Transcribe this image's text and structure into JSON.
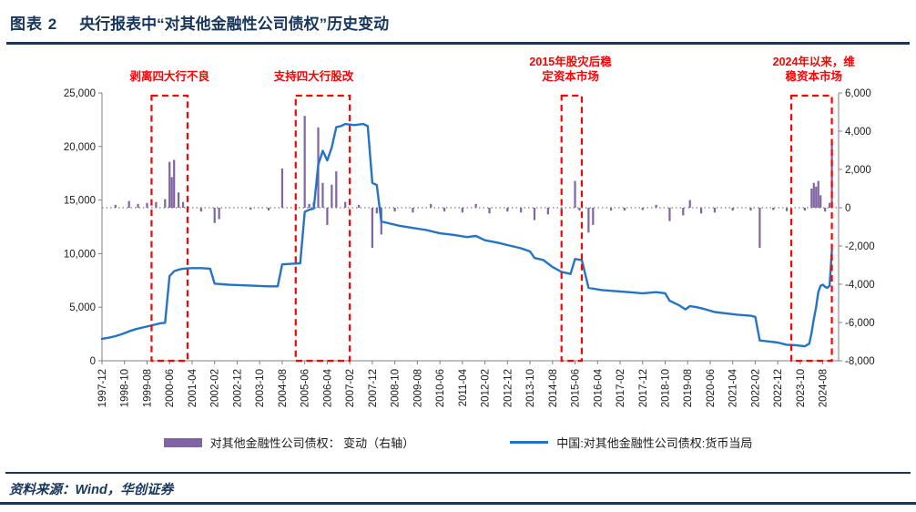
{
  "header": {
    "figure_label": "图表 2",
    "title": "央行报表中“对其他金融性公司债权”历史变动"
  },
  "legend": {
    "bar_label": "对其他金融性公司债权： 变动（右轴）",
    "line_label": "中国:对其他金融性公司债权:货币当局"
  },
  "footer": {
    "source": "资料来源：Wind，华创证券"
  },
  "colors": {
    "navy": "#17365D",
    "line_blue": "#2473C5",
    "bar_purple": "#8064A2",
    "annotation_red": "#FF0000",
    "axis_line": "#7f7f7f",
    "tick_text": "#1a1a1a"
  },
  "chart_data": {
    "type": "line+bar",
    "x_start": "1997-12",
    "x_end": "2024-12",
    "x_tick_labels": [
      "1997-12",
      "1998-10",
      "1999-08",
      "2000-06",
      "2001-04",
      "2002-02",
      "2002-12",
      "2003-10",
      "2004-08",
      "2005-06",
      "2006-04",
      "2007-02",
      "2007-12",
      "2008-10",
      "2009-08",
      "2010-06",
      "2011-04",
      "2012-02",
      "2012-12",
      "2013-10",
      "2014-08",
      "2015-06",
      "2016-04",
      "2017-02",
      "2017-12",
      "2018-10",
      "2019-08",
      "2020-06",
      "2021-04",
      "2022-02",
      "2022-12",
      "2023-10",
      "2024-08"
    ],
    "x_tick_step_months": 10,
    "left_axis": {
      "min": 0,
      "max": 25000,
      "step": 5000,
      "ticks": [
        "0",
        "5,000",
        "10,000",
        "15,000",
        "20,000",
        "25,000"
      ]
    },
    "right_axis": {
      "min": -8000,
      "max": 6000,
      "step": 2000,
      "ticks": [
        "-8,000",
        "-6,000",
        "-4,000",
        "-2,000",
        "0",
        "2,000",
        "4,000",
        "6,000"
      ]
    },
    "grid": "off",
    "legend_position": "bottom",
    "series": [
      {
        "name": "中国:对其他金融性公司债权:货币当局",
        "type": "line",
        "axis": "left",
        "color": "#2473C5",
        "points": [
          [
            "1997-12",
            2050
          ],
          [
            "1998-03",
            2150
          ],
          [
            "1998-06",
            2300
          ],
          [
            "1998-09",
            2500
          ],
          [
            "1998-12",
            2750
          ],
          [
            "1999-03",
            2950
          ],
          [
            "1999-06",
            3100
          ],
          [
            "1999-09",
            3250
          ],
          [
            "1999-12",
            3400
          ],
          [
            "2000-02",
            3500
          ],
          [
            "2000-04",
            3550
          ],
          [
            "2000-06",
            7900
          ],
          [
            "2000-08",
            8350
          ],
          [
            "2000-10",
            8500
          ],
          [
            "2000-12",
            8600
          ],
          [
            "2001-04",
            8650
          ],
          [
            "2001-08",
            8650
          ],
          [
            "2001-12",
            8600
          ],
          [
            "2002-02",
            7200
          ],
          [
            "2002-08",
            7100
          ],
          [
            "2003-02",
            7050
          ],
          [
            "2003-08",
            7000
          ],
          [
            "2004-02",
            6950
          ],
          [
            "2004-06",
            6950
          ],
          [
            "2004-08",
            9000
          ],
          [
            "2004-12",
            9050
          ],
          [
            "2005-04",
            9100
          ],
          [
            "2005-06",
            13900
          ],
          [
            "2005-08",
            14100
          ],
          [
            "2005-10",
            14200
          ],
          [
            "2005-12",
            18300
          ],
          [
            "2006-02",
            19600
          ],
          [
            "2006-04",
            18700
          ],
          [
            "2006-06",
            19900
          ],
          [
            "2006-08",
            21800
          ],
          [
            "2006-10",
            21900
          ],
          [
            "2006-12",
            22100
          ],
          [
            "2007-04",
            22000
          ],
          [
            "2007-08",
            22100
          ],
          [
            "2007-10",
            21900
          ],
          [
            "2007-12",
            16600
          ],
          [
            "2008-02",
            16400
          ],
          [
            "2008-04",
            13000
          ],
          [
            "2008-08",
            12800
          ],
          [
            "2008-12",
            12600
          ],
          [
            "2009-06",
            12400
          ],
          [
            "2009-12",
            12200
          ],
          [
            "2010-06",
            11900
          ],
          [
            "2010-12",
            11750
          ],
          [
            "2011-06",
            11550
          ],
          [
            "2011-10",
            11650
          ],
          [
            "2012-02",
            11250
          ],
          [
            "2012-08",
            11000
          ],
          [
            "2012-12",
            10800
          ],
          [
            "2013-06",
            10500
          ],
          [
            "2013-10",
            10200
          ],
          [
            "2013-12",
            9600
          ],
          [
            "2014-04",
            9400
          ],
          [
            "2014-08",
            8750
          ],
          [
            "2014-12",
            8300
          ],
          [
            "2015-04",
            8100
          ],
          [
            "2015-06",
            9500
          ],
          [
            "2015-09",
            9400
          ],
          [
            "2015-12",
            6800
          ],
          [
            "2016-06",
            6600
          ],
          [
            "2016-12",
            6500
          ],
          [
            "2017-06",
            6400
          ],
          [
            "2017-12",
            6300
          ],
          [
            "2018-06",
            6400
          ],
          [
            "2018-10",
            6300
          ],
          [
            "2018-12",
            5600
          ],
          [
            "2019-04",
            5200
          ],
          [
            "2019-07",
            4800
          ],
          [
            "2019-09",
            5100
          ],
          [
            "2019-12",
            5000
          ],
          [
            "2020-04",
            4800
          ],
          [
            "2020-08",
            4550
          ],
          [
            "2020-12",
            4450
          ],
          [
            "2021-06",
            4300
          ],
          [
            "2021-12",
            4200
          ],
          [
            "2022-02",
            4100
          ],
          [
            "2022-04",
            1900
          ],
          [
            "2022-08",
            1800
          ],
          [
            "2022-12",
            1700
          ],
          [
            "2023-04",
            1500
          ],
          [
            "2023-08",
            1450
          ],
          [
            "2023-12",
            1350
          ],
          [
            "2024-02",
            1600
          ],
          [
            "2024-03",
            2600
          ],
          [
            "2024-04",
            3900
          ],
          [
            "2024-05",
            5000
          ],
          [
            "2024-06",
            6400
          ],
          [
            "2024-07",
            7000
          ],
          [
            "2024-08",
            7100
          ],
          [
            "2024-09",
            6900
          ],
          [
            "2024-10",
            6800
          ],
          [
            "2024-11",
            7000
          ],
          [
            "2024-12",
            10300
          ]
        ]
      },
      {
        "name": "对其他金融性公司债权： 变动（右轴）",
        "type": "bar",
        "axis": "right",
        "color": "#8064A2",
        "points": [
          [
            "1998-06",
            150
          ],
          [
            "1998-12",
            350
          ],
          [
            "1999-04",
            200
          ],
          [
            "1999-08",
            250
          ],
          [
            "1999-12",
            300
          ],
          [
            "2000-04",
            450
          ],
          [
            "2000-06",
            2400
          ],
          [
            "2000-07",
            1600
          ],
          [
            "2000-08",
            2500
          ],
          [
            "2000-10",
            800
          ],
          [
            "2000-12",
            300
          ],
          [
            "2001-08",
            -200
          ],
          [
            "2002-02",
            -800
          ],
          [
            "2002-04",
            -600
          ],
          [
            "2003-06",
            -100
          ],
          [
            "2004-02",
            -150
          ],
          [
            "2004-08",
            2050
          ],
          [
            "2005-06",
            4800
          ],
          [
            "2005-08",
            200
          ],
          [
            "2005-10",
            300
          ],
          [
            "2005-12",
            4200
          ],
          [
            "2006-02",
            1300
          ],
          [
            "2006-04",
            -900
          ],
          [
            "2006-06",
            1200
          ],
          [
            "2006-08",
            1900
          ],
          [
            "2006-12",
            300
          ],
          [
            "2007-06",
            150
          ],
          [
            "2007-12",
            -2100
          ],
          [
            "2008-02",
            -300
          ],
          [
            "2008-04",
            -1400
          ],
          [
            "2008-10",
            -200
          ],
          [
            "2009-06",
            -250
          ],
          [
            "2010-02",
            200
          ],
          [
            "2010-08",
            -200
          ],
          [
            "2011-04",
            -250
          ],
          [
            "2011-10",
            200
          ],
          [
            "2012-04",
            -300
          ],
          [
            "2012-12",
            -200
          ],
          [
            "2013-06",
            -250
          ],
          [
            "2013-12",
            -650
          ],
          [
            "2014-06",
            -350
          ],
          [
            "2014-12",
            -300
          ],
          [
            "2015-06",
            1400
          ],
          [
            "2015-08",
            -150
          ],
          [
            "2015-12",
            -1300
          ],
          [
            "2016-02",
            -900
          ],
          [
            "2016-10",
            -150
          ],
          [
            "2017-04",
            -150
          ],
          [
            "2017-12",
            -120
          ],
          [
            "2018-06",
            150
          ],
          [
            "2018-12",
            -700
          ],
          [
            "2019-06",
            -400
          ],
          [
            "2019-09",
            400
          ],
          [
            "2020-02",
            -300
          ],
          [
            "2020-08",
            -250
          ],
          [
            "2021-04",
            -150
          ],
          [
            "2021-12",
            -150
          ],
          [
            "2022-04",
            -2100
          ],
          [
            "2022-10",
            -120
          ],
          [
            "2023-04",
            -180
          ],
          [
            "2023-12",
            -150
          ],
          [
            "2024-03",
            1000
          ],
          [
            "2024-04",
            1300
          ],
          [
            "2024-05",
            1100
          ],
          [
            "2024-06",
            1400
          ],
          [
            "2024-07",
            650
          ],
          [
            "2024-09",
            -200
          ],
          [
            "2024-11",
            250
          ],
          [
            "2024-12",
            3400
          ]
        ]
      }
    ],
    "annotations": [
      {
        "lines": [
          "剥离四大行不良"
        ],
        "x": "2000-06",
        "box": [
          "1999-10",
          "2001-02"
        ]
      },
      {
        "lines": [
          "支持四大行股改"
        ],
        "x": "2005-10",
        "box": [
          "2005-02",
          "2007-02"
        ]
      },
      {
        "lines": [
          "2015年股灾后稳",
          "定资本市场"
        ],
        "x": "2015-04",
        "box": [
          "2014-12",
          "2015-09"
        ]
      },
      {
        "lines": [
          "2024年以来，维",
          "稳资本市场"
        ],
        "x": "2024-04",
        "box": [
          "2023-06",
          "2024-12"
        ]
      }
    ]
  }
}
